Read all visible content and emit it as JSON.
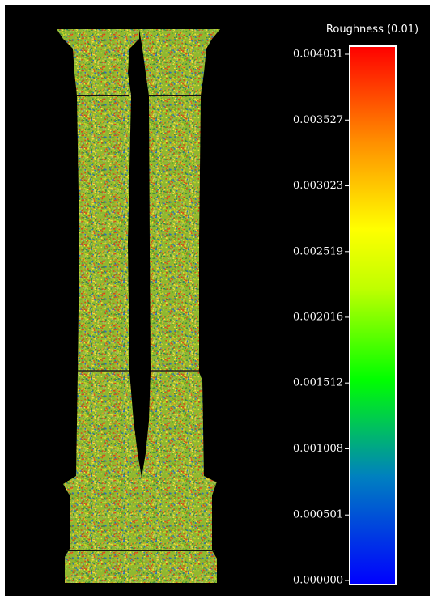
{
  "colorbar": {
    "title": "Roughness (0.01)",
    "range": [
      0,
      0.004031
    ],
    "ticks": [
      {
        "value": 0,
        "label": "0.000000"
      },
      0.000501,
      0.001008,
      0.001512,
      0.002016,
      0.002519,
      0.003023,
      0.003527,
      0.004031
    ]
  }
}
